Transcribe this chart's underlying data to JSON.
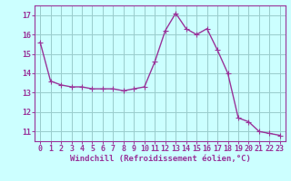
{
  "x": [
    0,
    1,
    2,
    3,
    4,
    5,
    6,
    7,
    8,
    9,
    10,
    11,
    12,
    13,
    14,
    15,
    16,
    17,
    18,
    19,
    20,
    21,
    22,
    23
  ],
  "y": [
    15.6,
    13.6,
    13.4,
    13.3,
    13.3,
    13.2,
    13.2,
    13.2,
    13.1,
    13.2,
    13.3,
    14.6,
    16.2,
    17.1,
    16.3,
    16.0,
    16.3,
    15.2,
    14.0,
    11.7,
    11.5,
    11.0,
    10.9,
    10.8
  ],
  "line_color": "#993399",
  "marker": "+",
  "markersize": 4,
  "linewidth": 1.0,
  "bg_color": "#ccffff",
  "grid_color": "#99cccc",
  "xlabel": "Windchill (Refroidissement éolien,°C)",
  "xlabel_fontsize": 6.5,
  "tick_fontsize": 6.0,
  "ylim": [
    10.5,
    17.5
  ],
  "xlim": [
    -0.5,
    23.5
  ],
  "yticks": [
    11,
    12,
    13,
    14,
    15,
    16,
    17
  ],
  "xticks": [
    0,
    1,
    2,
    3,
    4,
    5,
    6,
    7,
    8,
    9,
    10,
    11,
    12,
    13,
    14,
    15,
    16,
    17,
    18,
    19,
    20,
    21,
    22,
    23
  ],
  "label_color": "#993399",
  "spine_color": "#993399"
}
